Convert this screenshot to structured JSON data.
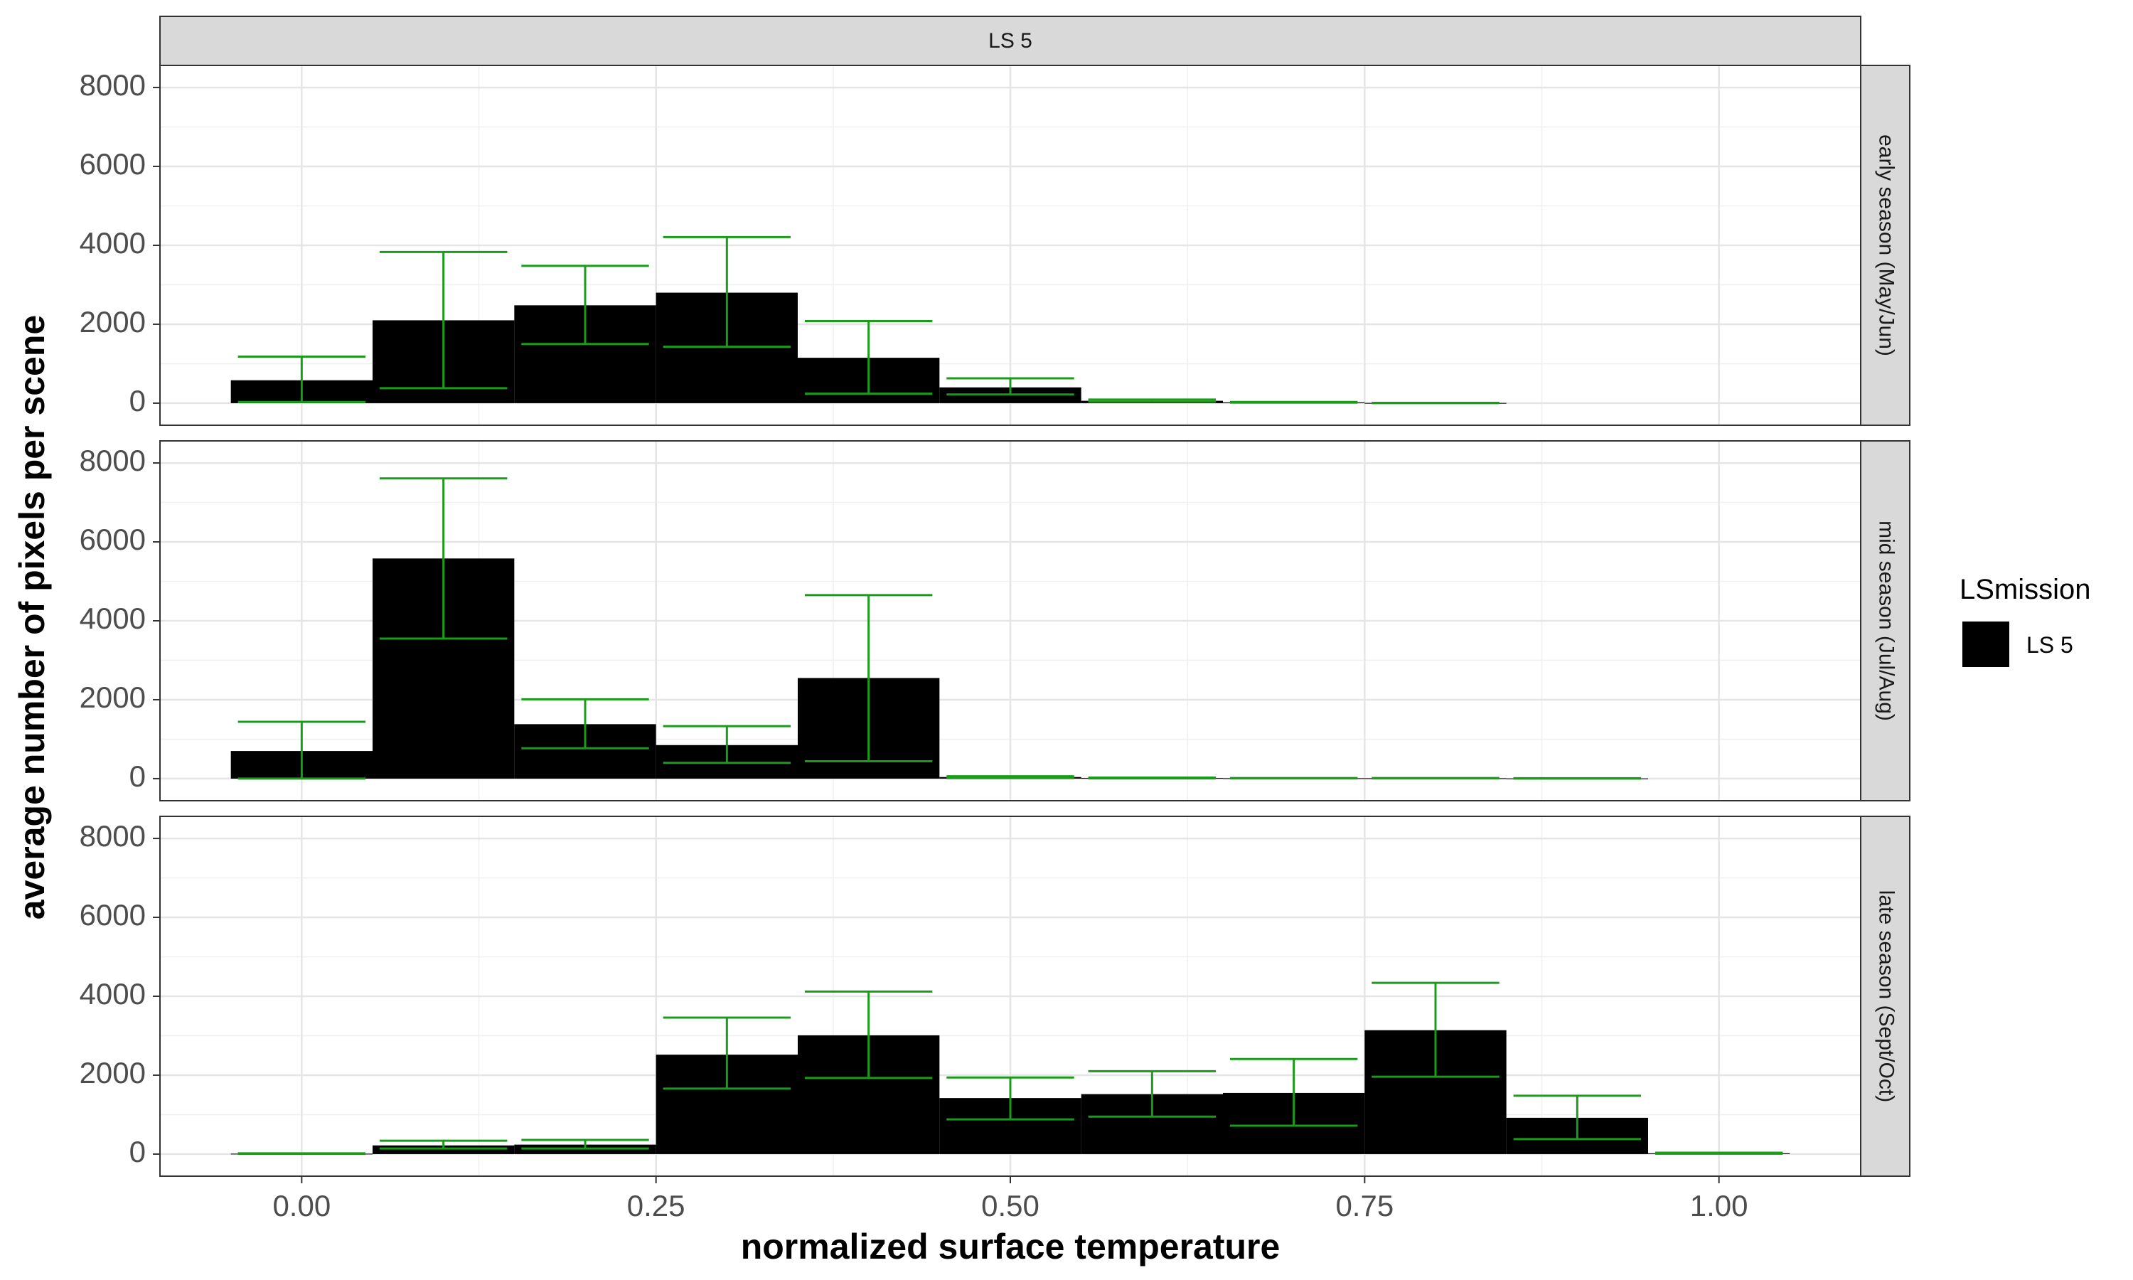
{
  "chart_data": {
    "type": "bar",
    "facet_column": "LS 5",
    "x": [
      0.0,
      0.1,
      0.2,
      0.3,
      0.4,
      0.5,
      0.6,
      0.7,
      0.8,
      0.9,
      1.0
    ],
    "xlabel": "normalized surface temperature",
    "ylabel": "average number of pixels per scene",
    "xlim": [
      -0.1,
      1.1
    ],
    "ylim": [
      0,
      8000
    ],
    "x_ticks": [
      "0.00",
      "0.25",
      "0.50",
      "0.75",
      "1.00"
    ],
    "x_tick_values": [
      0,
      0.25,
      0.5,
      0.75,
      1.0
    ],
    "y_ticks": [
      "0",
      "2000",
      "4000",
      "6000",
      "8000"
    ],
    "y_tick_values": [
      0,
      2000,
      4000,
      6000,
      8000
    ],
    "bar_color": "#000000",
    "errorbar_color": "#1a9c1a",
    "strip_color": "#d9d9d9",
    "grid": true,
    "panels": [
      {
        "label": "early season (May/Jun)",
        "values": [
          580,
          2100,
          2480,
          2800,
          1150,
          400,
          60,
          20,
          5,
          null,
          null
        ],
        "err_low": [
          30,
          380,
          1500,
          1430,
          240,
          220,
          40,
          15,
          2,
          null,
          null
        ],
        "err_high": [
          1180,
          3830,
          3480,
          4210,
          2080,
          630,
          90,
          30,
          8,
          null,
          null
        ]
      },
      {
        "label": "mid season (Jul/Aug)",
        "values": [
          700,
          5580,
          1380,
          850,
          2550,
          40,
          15,
          10,
          10,
          5,
          null
        ],
        "err_low": [
          0,
          3550,
          770,
          400,
          440,
          15,
          5,
          5,
          5,
          2,
          null
        ],
        "err_high": [
          1440,
          7610,
          2010,
          1330,
          4650,
          60,
          25,
          15,
          15,
          10,
          null
        ]
      },
      {
        "label": "late season (Sept/Oct)",
        "values": [
          10,
          220,
          240,
          2520,
          3010,
          1420,
          1520,
          1550,
          3140,
          920,
          20
        ],
        "err_low": [
          5,
          140,
          140,
          1660,
          1930,
          880,
          950,
          720,
          1960,
          380,
          10
        ],
        "err_high": [
          20,
          340,
          360,
          3460,
          4120,
          1940,
          2100,
          2410,
          4340,
          1480,
          35
        ]
      }
    ],
    "legend": {
      "title": "LSmission",
      "entries": [
        "LS 5"
      ],
      "position": "right"
    }
  }
}
